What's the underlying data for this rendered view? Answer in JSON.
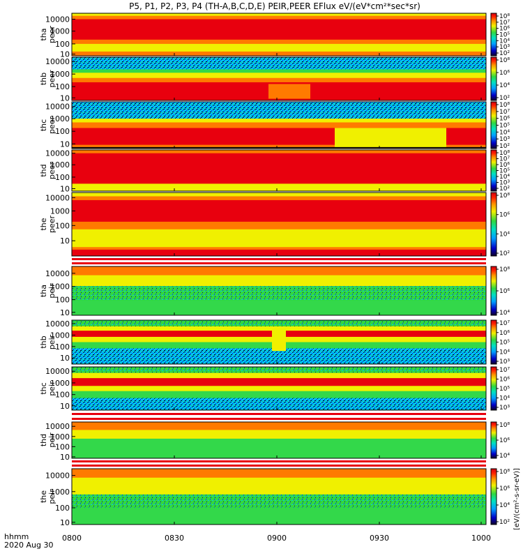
{
  "title": "P5, P1, P2, P3, P4 (TH-A,B,C,D,E) PEIR,PEER EFlux eV/(eV*cm²*sec*sr)",
  "x_axis": {
    "label_line1": "hhmm",
    "label_line2": "2020 Aug 30",
    "tick_labels": [
      "0800",
      "0830",
      "0900",
      "0930",
      "1000"
    ]
  },
  "colorbar_unit_label": "[eV/(cm²-s-sr-eV)]",
  "colors": {
    "red": "#e8000e",
    "orange": "#ff7a00",
    "yellow": "#f0f000",
    "green": "#33d84a",
    "cyan": "#00cfe6",
    "blue": "#0030ff",
    "navy": "#000070",
    "black": "#000000"
  },
  "chart_data": [
    {
      "type": "heatmap",
      "panel": "tha-peer",
      "ylabel": [
        "tha",
        "peer"
      ],
      "y_tick_labels": [
        "10000",
        "1000",
        "100",
        "10"
      ],
      "y_scale": "log",
      "y_range_eV": [
        7,
        30000
      ],
      "colorbar_tick_labels": [
        "10⁸",
        "10⁷",
        "10⁶",
        "10⁵",
        "10⁴",
        "10³",
        "10²"
      ],
      "colorbar_range": [
        100,
        100000000
      ],
      "structure": "broad red band 20 eV–20 keV, yellow below 60 eV"
    },
    {
      "type": "heatmap",
      "panel": "thb-peer",
      "ylabel": [
        "thb",
        "peer"
      ],
      "y_tick_labels": [
        "10000",
        "1000",
        "100",
        "10"
      ],
      "y_scale": "log",
      "y_range_eV": [
        7,
        30000
      ],
      "colorbar_tick_labels": [
        "10⁸",
        "10⁶",
        "10⁴",
        "10²"
      ],
      "colorbar_range": [
        100,
        100000000
      ],
      "structure": "speckled blue noise above 2 keV, yellow 0.4–2 keV, red below 300 eV, enhancement near 0905"
    },
    {
      "type": "heatmap",
      "panel": "thc-peer",
      "ylabel": [
        "thc",
        "peer"
      ],
      "y_tick_labels": [
        "10000",
        "1000",
        "100",
        "10"
      ],
      "y_scale": "log",
      "y_range_eV": [
        7,
        30000
      ],
      "colorbar_tick_labels": [
        "10⁸",
        "10⁷",
        "10⁶",
        "10⁵",
        "10⁴",
        "10³",
        "10²"
      ],
      "colorbar_range": [
        100,
        100000000
      ],
      "structure": "blue noise above 1 keV, red band 20–600 eV, lower edge rises after 0908"
    },
    {
      "type": "heatmap",
      "panel": "thd-peer",
      "ylabel": [
        "thd",
        "peer"
      ],
      "y_tick_labels": [
        "10000",
        "1000",
        "100",
        "10"
      ],
      "y_scale": "log",
      "y_range_eV": [
        7,
        30000
      ],
      "colorbar_tick_labels": [
        "10⁸",
        "10⁷",
        "10⁶",
        "10⁵",
        "10⁴",
        "10³",
        "10²"
      ],
      "colorbar_range": [
        100,
        100000000
      ],
      "structure": "red across 30 eV–20 keV, yellow near 10 eV"
    },
    {
      "type": "heatmap",
      "panel": "the-peer",
      "ylabel": [
        "the",
        "peer"
      ],
      "y_tick_labels": [
        "10000",
        "1000",
        "100",
        "10"
      ],
      "y_scale": "log",
      "y_range_eV": [
        7,
        30000
      ],
      "colorbar_tick_labels": [
        "10⁸",
        "10⁶",
        "10⁴",
        "10²"
      ],
      "colorbar_range": [
        100,
        100000000
      ],
      "structure": "red band 0.5–20 keV, yellow 20–500 eV"
    },
    {
      "type": "heatmap",
      "panel": "tha-peir",
      "ylabel": [
        "tha",
        "peir"
      ],
      "y_tick_labels": [
        "10000",
        "1000",
        "100",
        "10"
      ],
      "y_scale": "log",
      "y_range_eV": [
        5,
        30000
      ],
      "colorbar_tick_labels": [
        "10⁸",
        "10⁶",
        "10⁴"
      ],
      "colorbar_range": [
        1000,
        100000000
      ],
      "structure": "orange 2–20 keV, yellow to green toward low energy"
    },
    {
      "type": "heatmap",
      "panel": "thb-peir",
      "ylabel": [
        "thb",
        "peir"
      ],
      "y_tick_labels": [
        "10000",
        "1000",
        "100",
        "10"
      ],
      "y_scale": "log",
      "y_range_eV": [
        5,
        30000
      ],
      "colorbar_tick_labels": [
        "10⁷",
        "10⁶",
        "10⁵",
        "10⁴",
        "10³"
      ],
      "colorbar_range": [
        1000,
        10000000
      ],
      "structure": "red band near 1–3 keV, green/blue noise below 200 eV, dip near 0905"
    },
    {
      "type": "heatmap",
      "panel": "thc-peir",
      "ylabel": [
        "thc",
        "peir"
      ],
      "y_tick_labels": [
        "10000",
        "1000",
        "100",
        "10"
      ],
      "y_scale": "log",
      "y_range_eV": [
        5,
        30000
      ],
      "colorbar_tick_labels": [
        "10⁷",
        "10⁶",
        "10⁵",
        "10⁴",
        "10³"
      ],
      "colorbar_range": [
        1000,
        10000000
      ],
      "structure": "red band 0.4–2 keV, blue noise below 60 eV"
    },
    {
      "type": "heatmap",
      "panel": "thd-peir",
      "ylabel": [
        "thd",
        "peir"
      ],
      "y_tick_labels": [
        "10000",
        "1000",
        "100",
        "10"
      ],
      "y_scale": "log",
      "y_range_eV": [
        5,
        30000
      ],
      "colorbar_tick_labels": [
        "10⁸",
        "10⁶",
        "10⁴"
      ],
      "colorbar_range": [
        1000,
        100000000
      ],
      "structure": "yellow/orange at high energy, green below 200 eV"
    },
    {
      "type": "heatmap",
      "panel": "the-peir",
      "ylabel": [
        "the",
        "peir"
      ],
      "y_tick_labels": [
        "10000",
        "1000",
        "100",
        "10"
      ],
      "y_scale": "log",
      "y_range_eV": [
        5,
        30000
      ],
      "colorbar_tick_labels": [
        "10⁸",
        "10⁶",
        "10⁴",
        "10²"
      ],
      "colorbar_range": [
        100,
        100000000
      ],
      "structure": "orange/yellow at high energy, green below 100 eV"
    }
  ]
}
